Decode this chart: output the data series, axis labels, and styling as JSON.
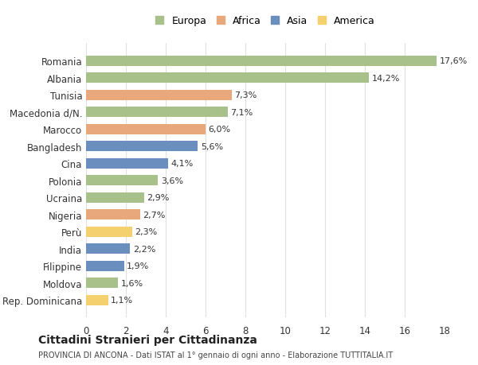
{
  "countries": [
    "Romania",
    "Albania",
    "Tunisia",
    "Macedonia d/N.",
    "Marocco",
    "Bangladesh",
    "Cina",
    "Polonia",
    "Ucraina",
    "Nigeria",
    "Perù",
    "India",
    "Filippine",
    "Moldova",
    "Rep. Dominicana"
  ],
  "values": [
    17.6,
    14.2,
    7.3,
    7.1,
    6.0,
    5.6,
    4.1,
    3.6,
    2.9,
    2.7,
    2.3,
    2.2,
    1.9,
    1.6,
    1.1
  ],
  "labels": [
    "17,6%",
    "14,2%",
    "7,3%",
    "7,1%",
    "6,0%",
    "5,6%",
    "4,1%",
    "3,6%",
    "2,9%",
    "2,7%",
    "2,3%",
    "2,2%",
    "1,9%",
    "1,6%",
    "1,1%"
  ],
  "regions": [
    "Europa",
    "Europa",
    "Africa",
    "Europa",
    "Africa",
    "Asia",
    "Asia",
    "Europa",
    "Europa",
    "Africa",
    "America",
    "Asia",
    "Asia",
    "Europa",
    "America"
  ],
  "region_colors": {
    "Europa": "#a8c08a",
    "Africa": "#e8a87c",
    "Asia": "#6a8fbf",
    "America": "#f5d06e"
  },
  "legend_order": [
    "Europa",
    "Africa",
    "Asia",
    "America"
  ],
  "title": "Cittadini Stranieri per Cittadinanza",
  "subtitle": "PROVINCIA DI ANCONA - Dati ISTAT al 1° gennaio di ogni anno - Elaborazione TUTTITALIA.IT",
  "xlim": [
    0,
    18
  ],
  "xticks": [
    0,
    2,
    4,
    6,
    8,
    10,
    12,
    14,
    16,
    18
  ],
  "background_color": "#ffffff",
  "grid_color": "#e0e0e0",
  "bar_height": 0.6
}
